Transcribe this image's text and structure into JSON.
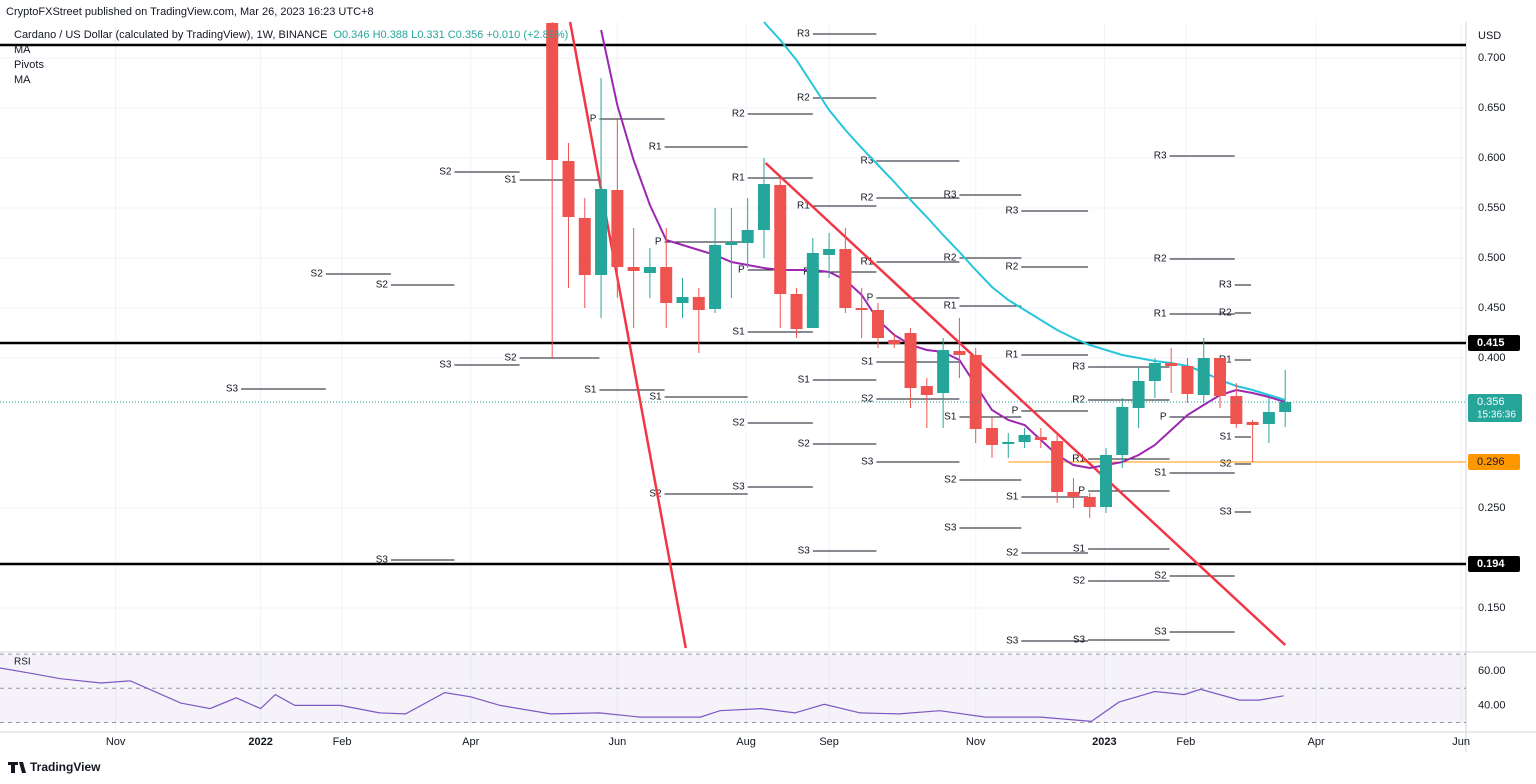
{
  "chart_data": {
    "type": "candlestick",
    "publisher": "CryptoFXStreet published on TradingView.com, Mar 26, 2023 16:23 UTC+8",
    "title": "Cardano / US Dollar (calculated by TradingView), 1W, BINANCE",
    "ohlc_legend": "O0.346 H0.388 L0.331 C0.356 +0.010 (+2.89%)",
    "legend_items": [
      "MA",
      "Pivots",
      "MA"
    ],
    "currency": "USD",
    "brand": "TradingView",
    "up_color": "#26a69a",
    "down_color": "#ef5350",
    "xlim": [
      -33.9,
      56.1
    ],
    "xticks": [
      {
        "value": -26.8,
        "label": "Nov"
      },
      {
        "value": -17.9,
        "label": "2022"
      },
      {
        "value": -12.9,
        "label": "Feb"
      },
      {
        "value": -5.0,
        "label": "Apr"
      },
      {
        "value": 4.0,
        "label": "Jun"
      },
      {
        "value": 11.9,
        "label": "Aug"
      },
      {
        "value": 17.0,
        "label": "Sep"
      },
      {
        "value": 26.0,
        "label": "Nov"
      },
      {
        "value": 33.9,
        "label": "2023"
      },
      {
        "value": 38.9,
        "label": "Feb"
      },
      {
        "value": 46.9,
        "label": "Apr"
      },
      {
        "value": 55.8,
        "label": "Jun"
      }
    ],
    "ylim": [
      0.108,
      0.736
    ],
    "yticks": [
      {
        "value": 0.15,
        "label": "0.150"
      },
      {
        "value": 0.25,
        "label": "0.250"
      },
      {
        "value": 0.4,
        "label": "0.400"
      },
      {
        "value": 0.45,
        "label": "0.450"
      },
      {
        "value": 0.5,
        "label": "0.500"
      },
      {
        "value": 0.55,
        "label": "0.550"
      },
      {
        "value": 0.6,
        "label": "0.600"
      },
      {
        "value": 0.65,
        "label": "0.650"
      },
      {
        "value": 0.7,
        "label": "0.700"
      }
    ],
    "grid": true,
    "x": [
      0,
      1,
      2,
      3,
      4,
      5,
      6,
      7,
      8,
      9,
      10,
      11,
      12,
      13,
      14,
      15,
      16,
      17,
      18,
      19,
      20,
      21,
      22,
      23,
      24,
      25,
      26,
      27,
      28,
      29,
      30,
      31,
      32,
      33,
      34,
      35,
      36,
      37,
      38,
      39,
      40,
      41,
      42,
      43,
      44,
      45
    ],
    "open": [
      0.735,
      0.597,
      0.54,
      0.483,
      0.568,
      0.491,
      0.485,
      0.491,
      0.455,
      0.461,
      0.449,
      0.513,
      0.515,
      0.528,
      0.573,
      0.464,
      0.43,
      0.503,
      0.509,
      0.45,
      0.448,
      0.418,
      0.425,
      0.372,
      0.365,
      0.407,
      0.403,
      0.33,
      0.314,
      0.316,
      0.321,
      0.317,
      0.266,
      0.261,
      0.251,
      0.303,
      0.35,
      0.377,
      0.395,
      0.392,
      0.363,
      0.4,
      0.362,
      0.336,
      0.334,
      0.346
    ],
    "high": [
      0.736,
      0.615,
      0.56,
      0.68,
      0.64,
      0.53,
      0.51,
      0.53,
      0.48,
      0.47,
      0.55,
      0.55,
      0.56,
      0.6,
      0.58,
      0.47,
      0.52,
      0.525,
      0.53,
      0.47,
      0.455,
      0.425,
      0.43,
      0.38,
      0.42,
      0.44,
      0.41,
      0.34,
      0.325,
      0.33,
      0.33,
      0.325,
      0.28,
      0.265,
      0.31,
      0.36,
      0.39,
      0.4,
      0.41,
      0.4,
      0.42,
      0.4,
      0.375,
      0.338,
      0.36,
      0.388
    ],
    "low": [
      0.4,
      0.47,
      0.45,
      0.44,
      0.46,
      0.43,
      0.46,
      0.43,
      0.44,
      0.405,
      0.445,
      0.46,
      0.49,
      0.5,
      0.43,
      0.42,
      0.43,
      0.48,
      0.445,
      0.42,
      0.41,
      0.41,
      0.35,
      0.33,
      0.33,
      0.38,
      0.315,
      0.3,
      0.3,
      0.31,
      0.31,
      0.255,
      0.25,
      0.24,
      0.245,
      0.29,
      0.33,
      0.36,
      0.365,
      0.355,
      0.355,
      0.35,
      0.33,
      0.296,
      0.315,
      0.331
    ],
    "close": [
      0.598,
      0.541,
      0.483,
      0.569,
      0.491,
      0.487,
      0.491,
      0.455,
      0.461,
      0.448,
      0.513,
      0.516,
      0.528,
      0.574,
      0.464,
      0.429,
      0.505,
      0.509,
      0.45,
      0.448,
      0.42,
      0.414,
      0.37,
      0.363,
      0.408,
      0.403,
      0.329,
      0.313,
      0.316,
      0.323,
      0.318,
      0.266,
      0.261,
      0.251,
      0.303,
      0.351,
      0.377,
      0.395,
      0.392,
      0.364,
      0.4,
      0.362,
      0.334,
      0.333,
      0.346,
      0.356
    ],
    "moving_averages": [
      {
        "color": "#9c27b0",
        "values": [
          null,
          null,
          null,
          0.728,
          0.653,
          0.598,
          0.553,
          0.518,
          0.513,
          0.508,
          0.503,
          0.496,
          0.493,
          0.49,
          0.488,
          0.488,
          0.488,
          0.486,
          0.478,
          0.463,
          0.438,
          0.423,
          0.413,
          0.408,
          0.406,
          0.398,
          0.373,
          0.348,
          0.338,
          0.333,
          0.318,
          0.303,
          0.293,
          0.29,
          0.293,
          0.296,
          0.303,
          0.313,
          0.328,
          0.343,
          0.353,
          0.363,
          0.368,
          0.365,
          0.361,
          0.356
        ]
      },
      {
        "color": "#26c6da",
        "values": [
          null,
          null,
          null,
          null,
          null,
          null,
          null,
          null,
          null,
          null,
          null,
          null,
          null,
          0.736,
          0.718,
          0.698,
          0.673,
          0.648,
          0.628,
          0.61,
          0.593,
          0.576,
          0.558,
          0.541,
          0.523,
          0.506,
          0.488,
          0.471,
          0.458,
          0.448,
          0.438,
          0.428,
          0.42,
          0.413,
          0.408,
          0.403,
          0.4,
          0.397,
          0.395,
          0.392,
          0.386,
          0.378,
          0.372,
          0.368,
          0.363,
          0.358
        ]
      }
    ],
    "trendlines": [
      {
        "color": "#f23645",
        "x": [
          1.1,
          8.2
        ],
        "y": [
          0.736,
          0.11
        ]
      },
      {
        "color": "#f23645",
        "x": [
          13.1,
          45.0
        ],
        "y": [
          0.595,
          0.113
        ]
      }
    ],
    "levels": [
      {
        "value": 0.713,
        "color": "#000000"
      },
      {
        "value": 0.415,
        "label": "0.415",
        "color": "#000000"
      },
      {
        "value": 0.194,
        "label": "0.194",
        "color": "#000000"
      }
    ],
    "support": {
      "value": 0.296,
      "label": "0.296",
      "color": "#ff9800",
      "from": 28.0
    },
    "last_price": {
      "value": 0.356,
      "label": "0.356",
      "countdown": "15:36:36",
      "color": "#26a69a"
    },
    "pivots": [
      {
        "label": "S3",
        "from": -19.1,
        "to": -13.9,
        "value": 0.369
      },
      {
        "label": "S2",
        "from": -13.9,
        "to": -9.9,
        "value": 0.484
      },
      {
        "label": "S2",
        "from": -9.9,
        "to": -6.0,
        "value": 0.473
      },
      {
        "label": "S3",
        "from": -9.9,
        "to": -6.0,
        "value": 0.198
      },
      {
        "label": "S2",
        "from": -6.0,
        "to": -2.0,
        "value": 0.586
      },
      {
        "label": "S3",
        "from": -6.0,
        "to": -2.0,
        "value": 0.393
      },
      {
        "label": "S1",
        "from": -2.0,
        "to": 2.9,
        "value": 0.578
      },
      {
        "label": "S2",
        "from": -2.0,
        "to": 2.9,
        "value": 0.4
      },
      {
        "label": "P",
        "from": 2.9,
        "to": 6.9,
        "value": 0.639
      },
      {
        "label": "S1",
        "from": 2.9,
        "to": 6.9,
        "value": 0.368
      },
      {
        "label": "R1",
        "from": 6.9,
        "to": 12.0,
        "value": 0.611
      },
      {
        "label": "P",
        "from": 6.9,
        "to": 12.0,
        "value": 0.516
      },
      {
        "label": "S1",
        "from": 6.9,
        "to": 12.0,
        "value": 0.361
      },
      {
        "label": "S2",
        "from": 6.9,
        "to": 12.0,
        "value": 0.264
      },
      {
        "label": "R2",
        "from": 12.0,
        "to": 16.0,
        "value": 0.644
      },
      {
        "label": "R1",
        "from": 12.0,
        "to": 16.0,
        "value": 0.58
      },
      {
        "label": "P",
        "from": 12.0,
        "to": 16.0,
        "value": 0.488
      },
      {
        "label": "S1",
        "from": 12.0,
        "to": 16.0,
        "value": 0.426
      },
      {
        "label": "S2",
        "from": 12.0,
        "to": 16.0,
        "value": 0.335
      },
      {
        "label": "S3",
        "from": 12.0,
        "to": 16.0,
        "value": 0.271
      },
      {
        "label": "R3",
        "from": 16.0,
        "to": 19.9,
        "value": 0.724
      },
      {
        "label": "R2",
        "from": 16.0,
        "to": 19.9,
        "value": 0.66
      },
      {
        "label": "R1",
        "from": 16.0,
        "to": 19.9,
        "value": 0.552
      },
      {
        "label": "P",
        "from": 16.0,
        "to": 19.9,
        "value": 0.486
      },
      {
        "label": "S1",
        "from": 16.0,
        "to": 19.9,
        "value": 0.378
      },
      {
        "label": "S2",
        "from": 16.0,
        "to": 19.9,
        "value": 0.314
      },
      {
        "label": "S3",
        "from": 16.0,
        "to": 19.9,
        "value": 0.207
      },
      {
        "label": "R3",
        "from": 19.9,
        "to": 25.0,
        "value": 0.597
      },
      {
        "label": "R2",
        "from": 19.9,
        "to": 25.0,
        "value": 0.56
      },
      {
        "label": "R1",
        "from": 19.9,
        "to": 25.0,
        "value": 0.496
      },
      {
        "label": "P",
        "from": 19.9,
        "to": 25.0,
        "value": 0.46
      },
      {
        "label": "S1",
        "from": 19.9,
        "to": 25.0,
        "value": 0.396
      },
      {
        "label": "S2",
        "from": 19.9,
        "to": 25.0,
        "value": 0.359
      },
      {
        "label": "S3",
        "from": 19.9,
        "to": 25.0,
        "value": 0.296
      },
      {
        "label": "R3",
        "from": 25.0,
        "to": 28.8,
        "value": 0.563
      },
      {
        "label": "R2",
        "from": 25.0,
        "to": 28.8,
        "value": 0.5
      },
      {
        "label": "R1",
        "from": 25.0,
        "to": 28.8,
        "value": 0.452
      },
      {
        "label": "S1",
        "from": 25.0,
        "to": 28.8,
        "value": 0.341
      },
      {
        "label": "S2",
        "from": 25.0,
        "to": 28.8,
        "value": 0.278
      },
      {
        "label": "S3",
        "from": 25.0,
        "to": 28.8,
        "value": 0.23
      },
      {
        "label": "R3",
        "from": 28.8,
        "to": 32.9,
        "value": 0.547
      },
      {
        "label": "R2",
        "from": 28.8,
        "to": 32.9,
        "value": 0.491
      },
      {
        "label": "R1",
        "from": 28.8,
        "to": 32.9,
        "value": 0.403
      },
      {
        "label": "P",
        "from": 28.8,
        "to": 32.9,
        "value": 0.347
      },
      {
        "label": "S1",
        "from": 28.8,
        "to": 32.9,
        "value": 0.261
      },
      {
        "label": "S2",
        "from": 28.8,
        "to": 32.9,
        "value": 0.205
      },
      {
        "label": "S3",
        "from": 28.8,
        "to": 32.9,
        "value": 0.117
      },
      {
        "label": "R3",
        "from": 32.9,
        "to": 37.9,
        "value": 0.391
      },
      {
        "label": "R2",
        "from": 32.9,
        "to": 37.9,
        "value": 0.358
      },
      {
        "label": "R1",
        "from": 32.9,
        "to": 37.9,
        "value": 0.299
      },
      {
        "label": "P",
        "from": 32.9,
        "to": 37.9,
        "value": 0.267
      },
      {
        "label": "S1",
        "from": 32.9,
        "to": 37.9,
        "value": 0.209
      },
      {
        "label": "S2",
        "from": 32.9,
        "to": 37.9,
        "value": 0.177
      },
      {
        "label": "S3",
        "from": 32.9,
        "to": 37.9,
        "value": 0.118
      },
      {
        "label": "R3",
        "from": 37.9,
        "to": 41.9,
        "value": 0.602
      },
      {
        "label": "R2",
        "from": 37.9,
        "to": 41.9,
        "value": 0.499
      },
      {
        "label": "R1",
        "from": 37.9,
        "to": 41.9,
        "value": 0.444
      },
      {
        "label": "P",
        "from": 37.9,
        "to": 41.9,
        "value": 0.341
      },
      {
        "label": "S1",
        "from": 37.9,
        "to": 41.9,
        "value": 0.285
      },
      {
        "label": "S2",
        "from": 37.9,
        "to": 41.9,
        "value": 0.182
      },
      {
        "label": "S3",
        "from": 37.9,
        "to": 41.9,
        "value": 0.126
      },
      {
        "label": "R3",
        "from": 41.9,
        "to": 42.9,
        "value": 0.473
      },
      {
        "label": "R2",
        "from": 41.9,
        "to": 42.9,
        "value": 0.445
      },
      {
        "label": "R1",
        "from": 41.9,
        "to": 42.9,
        "value": 0.398
      },
      {
        "label": "S1",
        "from": 41.9,
        "to": 42.9,
        "value": 0.321
      },
      {
        "label": "S2",
        "from": 41.9,
        "to": 42.9,
        "value": 0.294
      },
      {
        "label": "S3",
        "from": 41.9,
        "to": 42.9,
        "value": 0.246
      }
    ],
    "rsi": {
      "name": "RSI",
      "color": "#7e57c2",
      "ylim": [
        24.4,
        71.25
      ],
      "yticks": [
        {
          "value": 40,
          "label": "40.00"
        },
        {
          "value": 60,
          "label": "60.00"
        }
      ],
      "bands": [
        30,
        50,
        70
      ],
      "x": [
        -33.9,
        -32.0,
        -30.2,
        -27.7,
        -25.9,
        -22.8,
        -21.0,
        -19.4,
        -17.9,
        -17.0,
        -15.8,
        -13.0,
        -10.6,
        -9.0,
        -6.6,
        -5.0,
        -3.2,
        -0.1,
        2.9,
        5.4,
        9.1,
        10.3,
        12.8,
        14.9,
        16.7,
        18.9,
        21.3,
        23.8,
        26.6,
        30.0,
        33.1,
        34.8,
        37.0,
        38.8,
        39.8,
        42.2,
        43.4,
        44.9
      ],
      "values": [
        61.9,
        58.8,
        55.6,
        53.1,
        54.4,
        41.3,
        38.1,
        44.4,
        38.1,
        46.3,
        40,
        40,
        35.6,
        35,
        47.5,
        45,
        40,
        35,
        35.6,
        33.1,
        33.1,
        36.9,
        38.1,
        35.6,
        40.6,
        35.6,
        35,
        36.9,
        33.1,
        33.1,
        30.6,
        41.9,
        48.1,
        46.3,
        49.4,
        43.1,
        43.1,
        45.6
      ]
    }
  }
}
